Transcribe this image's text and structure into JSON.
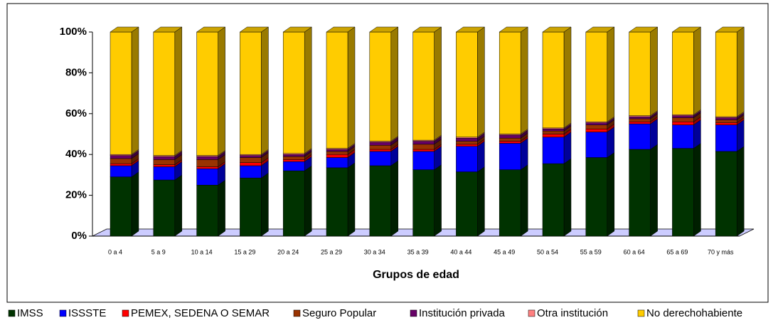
{
  "chart_data": {
    "type": "stacked-bar-3d",
    "x_label": "Grupos de edad",
    "categories": [
      "0 a 4",
      "5 a 9",
      "10 a 14",
      "15 a 29",
      "20 a 24",
      "25 a 29",
      "30 a 34",
      "35 a 39",
      "40 a 44",
      "45 a 49",
      "50 a 54",
      "55 a 59",
      "60 a 64",
      "65 a 69",
      "70 y más"
    ],
    "ylim": [
      0,
      100
    ],
    "yticks": [
      {
        "value": 0,
        "label": "0%"
      },
      {
        "value": 20,
        "label": "20%"
      },
      {
        "value": 40,
        "label": "40%"
      },
      {
        "value": 60,
        "label": "60%"
      },
      {
        "value": 80,
        "label": "80%"
      },
      {
        "value": 100,
        "label": "100%"
      }
    ],
    "series": [
      {
        "name": "IMSS",
        "color": "#003300",
        "values": [
          29,
          27.5,
          25,
          28.5,
          32,
          33.5,
          34.5,
          32.5,
          31.5,
          32.5,
          35.5,
          38.5,
          42.5,
          43,
          41.5
        ]
      },
      {
        "name": "ISSSTE",
        "color": "#0000ff",
        "values": [
          5.5,
          6.5,
          8,
          6,
          4.5,
          5,
          7,
          9,
          12.5,
          13,
          13,
          12.5,
          12.5,
          11.5,
          13
        ]
      },
      {
        "name": "PEMEX, SEDENA O SEMAR",
        "color": "#ff0000",
        "values": [
          1,
          1,
          1,
          1.5,
          1,
          1.5,
          1,
          1,
          1,
          1,
          1.5,
          1.5,
          1,
          1.5,
          1
        ]
      },
      {
        "name": "Seguro Popular",
        "color": "#993300",
        "values": [
          2.5,
          2.5,
          3.5,
          2.5,
          1.5,
          1.5,
          2,
          2.5,
          1.5,
          1.5,
          1.5,
          2,
          1.5,
          2,
          1.5
        ]
      },
      {
        "name": "Institución privada",
        "color": "#660066",
        "values": [
          1.5,
          1.5,
          1.5,
          1,
          1,
          1,
          1.5,
          1.5,
          1.5,
          1.5,
          1,
          1,
          1,
          1,
          1
        ]
      },
      {
        "name": "Otra institución",
        "color": "#ff8080",
        "values": [
          0.5,
          0.5,
          0.5,
          0.5,
          0.5,
          0.5,
          0.5,
          0.5,
          0.5,
          0.5,
          0.5,
          0.5,
          0.5,
          0.5,
          0.5
        ]
      },
      {
        "name": "No derechohabiente",
        "color": "#ffcc00",
        "values": [
          60,
          60.5,
          60.5,
          60,
          59.5,
          57,
          53.5,
          53,
          51.5,
          50,
          47,
          44,
          41,
          40.5,
          41.5
        ]
      }
    ]
  }
}
